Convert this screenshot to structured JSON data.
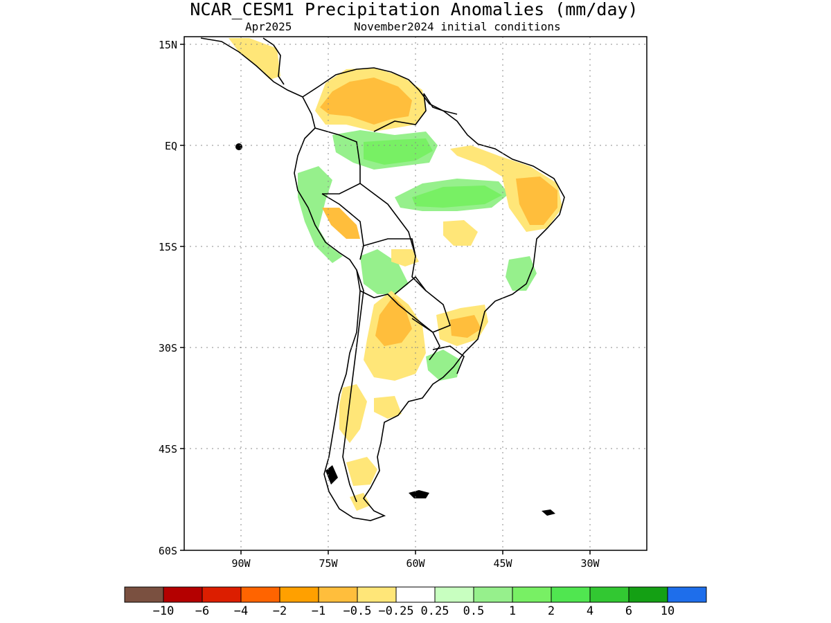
{
  "title": "NCAR_CESM1 Precipitation Anomalies (mm/day)",
  "subtitle_left": "Apr2025",
  "subtitle_right": "November2024 initial conditions",
  "lat_labels": [
    "15N",
    "EQ",
    "15S",
    "30S",
    "45S",
    "60S"
  ],
  "lon_labels": [
    "90W",
    "75W",
    "60W",
    "45W",
    "30W"
  ],
  "grid": true,
  "colorbar": {
    "colors": [
      "#7a5040",
      "#b40000",
      "#dc1e00",
      "#ff6400",
      "#ffa000",
      "#ffbe3c",
      "#ffe678",
      "#ffffff",
      "#c8ffc0",
      "#96f08c",
      "#78f064",
      "#50e650",
      "#32c832",
      "#14a014",
      "#1e6eeb"
    ],
    "labels": [
      "−10",
      "−6",
      "−4",
      "−2",
      "−1",
      "−0.5",
      "−0.25",
      "0.25",
      "0.5",
      "1",
      "2",
      "4",
      "6",
      "10"
    ]
  },
  "legend_colors": {
    "dry_light": "#ffe678",
    "dry_medium": "#ffbe3c",
    "dry_strong": "#ffa000",
    "wet_light": "#c8ffc0",
    "wet_medium": "#96f08c",
    "wet_strong": "#78f064"
  }
}
